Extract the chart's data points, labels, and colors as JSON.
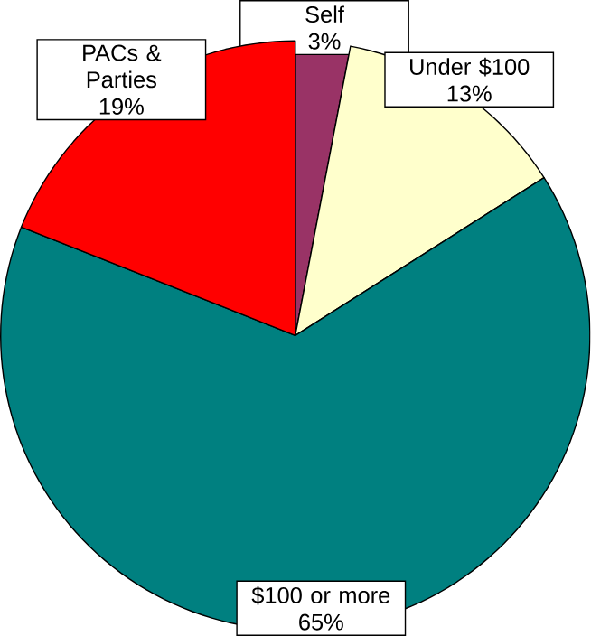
{
  "chart_data": {
    "type": "pie",
    "categories": [
      "Self",
      "Under $100",
      "$100 or more",
      "PACs & Parties"
    ],
    "values": [
      3,
      13,
      65,
      19
    ],
    "value_labels": [
      "3%",
      "13%",
      "65%",
      "19%"
    ],
    "colors": [
      "#993366",
      "#ffffcc",
      "#008080",
      "#ff0000"
    ]
  }
}
